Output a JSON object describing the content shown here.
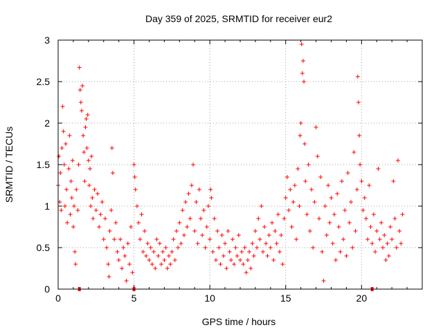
{
  "chart_data": {
    "type": "scatter",
    "title": "Day 359 of 2025, SRMTID for receiver eur2",
    "xlabel": "GPS time / hours",
    "ylabel": "SRMTID / TECUs",
    "xlim": [
      0,
      24
    ],
    "ylim": [
      0,
      3
    ],
    "x_ticks": [
      0,
      5,
      10,
      15,
      20
    ],
    "x_tick_labels": [
      "0",
      "5",
      "10",
      "15",
      "20"
    ],
    "y_ticks": [
      0,
      0.5,
      1,
      1.5,
      2,
      2.5,
      3
    ],
    "y_tick_labels": [
      "0",
      "0.5",
      "1",
      "1.5",
      "2",
      "2.5",
      "3"
    ],
    "grid": true,
    "marker": "+",
    "color": "#ff0000",
    "series": [
      {
        "name": "SRMTID",
        "points": [
          [
            0.0,
            1.25
          ],
          [
            0.05,
            1.6
          ],
          [
            0.1,
            1.05
          ],
          [
            0.15,
            1.4
          ],
          [
            0.2,
            0.95
          ],
          [
            0.25,
            1.7
          ],
          [
            0.3,
            2.2
          ],
          [
            0.35,
            1.9
          ],
          [
            0.4,
            1.5
          ],
          [
            0.45,
            1.0
          ],
          [
            0.5,
            1.75
          ],
          [
            0.55,
            1.2
          ],
          [
            0.6,
            0.8
          ],
          [
            0.7,
            1.45
          ],
          [
            0.75,
            1.85
          ],
          [
            0.8,
            0.9
          ],
          [
            0.85,
            1.3
          ],
          [
            0.9,
            1.1
          ],
          [
            0.95,
            1.55
          ],
          [
            1.0,
            0.75
          ],
          [
            1.05,
            1.0
          ],
          [
            1.1,
            0.45
          ],
          [
            1.15,
            0.3
          ],
          [
            1.2,
            1.2
          ],
          [
            1.3,
            0.95
          ],
          [
            1.35,
            1.5
          ],
          [
            1.4,
            2.67
          ],
          [
            1.45,
            2.4
          ],
          [
            1.5,
            2.25
          ],
          [
            1.55,
            2.15
          ],
          [
            1.6,
            2.45
          ],
          [
            1.65,
            1.85
          ],
          [
            1.7,
            1.65
          ],
          [
            1.75,
            1.3
          ],
          [
            1.8,
            1.95
          ],
          [
            1.85,
            2.05
          ],
          [
            1.9,
            1.7
          ],
          [
            1.95,
            2.1
          ],
          [
            2.0,
            1.55
          ],
          [
            2.05,
            1.25
          ],
          [
            2.1,
            1.45
          ],
          [
            2.15,
            1.0
          ],
          [
            2.2,
            1.6
          ],
          [
            2.25,
            1.1
          ],
          [
            2.3,
            0.85
          ],
          [
            2.4,
            1.2
          ],
          [
            2.5,
            0.95
          ],
          [
            2.6,
            1.15
          ],
          [
            2.7,
            0.75
          ],
          [
            2.8,
            0.9
          ],
          [
            2.9,
            1.05
          ],
          [
            3.0,
            0.6
          ],
          [
            3.1,
            0.85
          ],
          [
            3.2,
            0.5
          ],
          [
            3.3,
            0.3
          ],
          [
            3.35,
            0.15
          ],
          [
            3.4,
            0.7
          ],
          [
            3.5,
            0.95
          ],
          [
            3.55,
            1.7
          ],
          [
            3.6,
            1.4
          ],
          [
            3.7,
            0.6
          ],
          [
            3.8,
            0.8
          ],
          [
            3.9,
            0.45
          ],
          [
            4.0,
            0.35
          ],
          [
            4.1,
            0.6
          ],
          [
            4.2,
            0.25
          ],
          [
            4.3,
            0.5
          ],
          [
            4.4,
            0.4
          ],
          [
            4.5,
            0.1
          ],
          [
            4.6,
            0.55
          ],
          [
            4.7,
            0.3
          ],
          [
            4.8,
            0.75
          ],
          [
            4.9,
            0.2
          ],
          [
            5.0,
            1.5
          ],
          [
            5.05,
            1.35
          ],
          [
            5.1,
            1.2
          ],
          [
            5.2,
            1.0
          ],
          [
            5.3,
            0.8
          ],
          [
            5.4,
            0.6
          ],
          [
            5.5,
            0.9
          ],
          [
            5.6,
            0.45
          ],
          [
            5.7,
            0.7
          ],
          [
            5.8,
            0.4
          ],
          [
            5.9,
            0.55
          ],
          [
            6.0,
            0.35
          ],
          [
            6.1,
            0.5
          ],
          [
            6.2,
            0.3
          ],
          [
            6.3,
            0.45
          ],
          [
            6.4,
            0.25
          ],
          [
            6.5,
            0.6
          ],
          [
            6.6,
            0.4
          ],
          [
            6.7,
            0.55
          ],
          [
            6.8,
            0.3
          ],
          [
            6.9,
            0.45
          ],
          [
            7.0,
            0.35
          ],
          [
            7.1,
            0.5
          ],
          [
            7.2,
            0.25
          ],
          [
            7.3,
            0.4
          ],
          [
            7.4,
            0.3
          ],
          [
            7.5,
            0.45
          ],
          [
            7.6,
            0.6
          ],
          [
            7.7,
            0.35
          ],
          [
            7.8,
            0.7
          ],
          [
            7.9,
            0.5
          ],
          [
            8.0,
            0.8
          ],
          [
            8.1,
            0.55
          ],
          [
            8.2,
            0.95
          ],
          [
            8.3,
            0.65
          ],
          [
            8.4,
            1.05
          ],
          [
            8.5,
            0.75
          ],
          [
            8.6,
            1.15
          ],
          [
            8.7,
            0.85
          ],
          [
            8.8,
            1.25
          ],
          [
            8.9,
            1.5
          ],
          [
            9.0,
            0.7
          ],
          [
            9.1,
            1.05
          ],
          [
            9.2,
            0.55
          ],
          [
            9.3,
            1.2
          ],
          [
            9.4,
            0.85
          ],
          [
            9.5,
            0.65
          ],
          [
            9.6,
            0.95
          ],
          [
            9.7,
            0.5
          ],
          [
            9.8,
            0.75
          ],
          [
            9.9,
            1.0
          ],
          [
            10.0,
            0.6
          ],
          [
            10.05,
            1.2
          ],
          [
            10.1,
            1.1
          ],
          [
            10.2,
            0.45
          ],
          [
            10.3,
            0.85
          ],
          [
            10.4,
            0.35
          ],
          [
            10.5,
            0.7
          ],
          [
            10.6,
            0.5
          ],
          [
            10.7,
            0.3
          ],
          [
            10.8,
            0.65
          ],
          [
            10.9,
            0.4
          ],
          [
            11.0,
            0.55
          ],
          [
            11.1,
            0.25
          ],
          [
            11.2,
            0.7
          ],
          [
            11.3,
            0.45
          ],
          [
            11.4,
            0.35
          ],
          [
            11.5,
            0.6
          ],
          [
            11.6,
            0.3
          ],
          [
            11.7,
            0.5
          ],
          [
            11.8,
            0.4
          ],
          [
            11.9,
            0.65
          ],
          [
            12.0,
            0.35
          ],
          [
            12.1,
            0.45
          ],
          [
            12.2,
            0.3
          ],
          [
            12.3,
            0.5
          ],
          [
            12.4,
            0.2
          ],
          [
            12.5,
            0.35
          ],
          [
            12.6,
            0.45
          ],
          [
            12.7,
            0.25
          ],
          [
            12.8,
            0.55
          ],
          [
            12.9,
            0.4
          ],
          [
            13.0,
            0.7
          ],
          [
            13.1,
            0.5
          ],
          [
            13.2,
            0.85
          ],
          [
            13.3,
            0.6
          ],
          [
            13.4,
            1.0
          ],
          [
            13.5,
            0.45
          ],
          [
            13.6,
            0.75
          ],
          [
            13.7,
            0.55
          ],
          [
            13.8,
            0.4
          ],
          [
            13.9,
            0.65
          ],
          [
            14.0,
            0.5
          ],
          [
            14.1,
            0.8
          ],
          [
            14.2,
            0.35
          ],
          [
            14.3,
            0.7
          ],
          [
            14.4,
            0.55
          ],
          [
            14.5,
            0.9
          ],
          [
            14.6,
            0.45
          ],
          [
            14.7,
            0.65
          ],
          [
            14.8,
            0.3
          ],
          [
            14.9,
            0.85
          ],
          [
            15.0,
            1.1
          ],
          [
            15.1,
            1.35
          ],
          [
            15.2,
            0.95
          ],
          [
            15.3,
            1.2
          ],
          [
            15.4,
            0.75
          ],
          [
            15.5,
            1.05
          ],
          [
            15.6,
            1.25
          ],
          [
            15.7,
            0.6
          ],
          [
            15.8,
            1.45
          ],
          [
            15.9,
            1.0
          ],
          [
            15.95,
            1.85
          ],
          [
            16.0,
            2.0
          ],
          [
            16.05,
            2.95
          ],
          [
            16.1,
            2.6
          ],
          [
            16.15,
            2.75
          ],
          [
            16.2,
            2.5
          ],
          [
            16.25,
            1.75
          ],
          [
            16.3,
            1.3
          ],
          [
            16.4,
            0.9
          ],
          [
            16.5,
            1.5
          ],
          [
            16.6,
            0.7
          ],
          [
            16.7,
            1.2
          ],
          [
            16.8,
            0.5
          ],
          [
            16.9,
            1.05
          ],
          [
            17.0,
            1.95
          ],
          [
            17.1,
            1.6
          ],
          [
            17.2,
            0.85
          ],
          [
            17.3,
            1.35
          ],
          [
            17.4,
            0.45
          ],
          [
            17.5,
            0.1
          ],
          [
            17.6,
            1.0
          ],
          [
            17.7,
            0.65
          ],
          [
            17.8,
            1.25
          ],
          [
            17.9,
            0.8
          ],
          [
            18.0,
            1.1
          ],
          [
            18.1,
            0.55
          ],
          [
            18.2,
            0.9
          ],
          [
            18.3,
            0.35
          ],
          [
            18.4,
            1.15
          ],
          [
            18.5,
            0.75
          ],
          [
            18.6,
            0.45
          ],
          [
            18.7,
            1.3
          ],
          [
            18.8,
            0.6
          ],
          [
            18.9,
            0.95
          ],
          [
            19.0,
            0.4
          ],
          [
            19.1,
            1.4
          ],
          [
            19.2,
            0.8
          ],
          [
            19.3,
            1.05
          ],
          [
            19.4,
            0.5
          ],
          [
            19.5,
            1.65
          ],
          [
            19.6,
            0.7
          ],
          [
            19.7,
            1.2
          ],
          [
            19.75,
            2.56
          ],
          [
            19.8,
            2.25
          ],
          [
            19.85,
            1.85
          ],
          [
            19.9,
            1.5
          ],
          [
            20.0,
            1.3
          ],
          [
            20.1,
            0.95
          ],
          [
            20.2,
            1.1
          ],
          [
            20.3,
            0.85
          ],
          [
            20.4,
            0.6
          ],
          [
            20.5,
            1.25
          ],
          [
            20.6,
            0.75
          ],
          [
            20.7,
            0.55
          ],
          [
            20.8,
            0.9
          ],
          [
            20.9,
            0.45
          ],
          [
            21.0,
            0.7
          ],
          [
            21.1,
            1.45
          ],
          [
            21.2,
            0.6
          ],
          [
            21.3,
            0.8
          ],
          [
            21.4,
            0.5
          ],
          [
            21.5,
            0.65
          ],
          [
            21.6,
            0.35
          ],
          [
            21.7,
            0.55
          ],
          [
            21.8,
            0.4
          ],
          [
            21.9,
            0.75
          ],
          [
            22.0,
            0.6
          ],
          [
            22.1,
            1.3
          ],
          [
            22.2,
            0.85
          ],
          [
            22.3,
            0.5
          ],
          [
            22.4,
            1.55
          ],
          [
            22.5,
            0.7
          ],
          [
            22.6,
            0.55
          ],
          [
            22.7,
            0.9
          ]
        ]
      }
    ],
    "gap_markers_x": [
      1.4,
      5.0,
      20.7
    ]
  }
}
